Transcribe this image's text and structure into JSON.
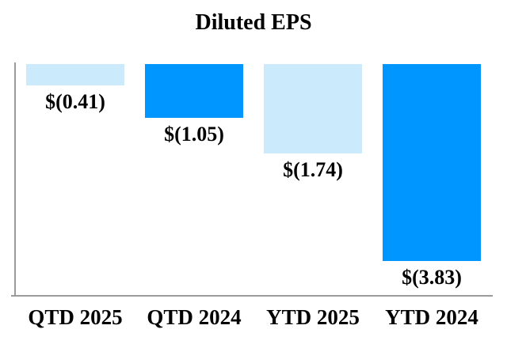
{
  "chart_data": {
    "type": "bar",
    "title": "Diluted EPS",
    "categories": [
      "QTD 2025",
      "QTD 2024",
      "YTD 2025",
      "YTD 2024"
    ],
    "values": [
      -0.41,
      -1.05,
      -1.74,
      -3.83
    ],
    "data_labels": [
      "$(0.41)",
      "$(1.05)",
      "$(1.74)",
      "$(3.83)"
    ],
    "series_colors": [
      "#CBEAFB",
      "#0096FF",
      "#CBEAFB",
      "#0096FF"
    ],
    "xlabel": "",
    "ylabel": "",
    "ylim": [
      0,
      -4.5
    ],
    "baseline": 0,
    "bars_extend": "downward-from-top",
    "grid": false,
    "legend": "none",
    "axis_color": "#9B9B9B",
    "text_color": "#000000",
    "background_color": "#FFFFFF"
  }
}
